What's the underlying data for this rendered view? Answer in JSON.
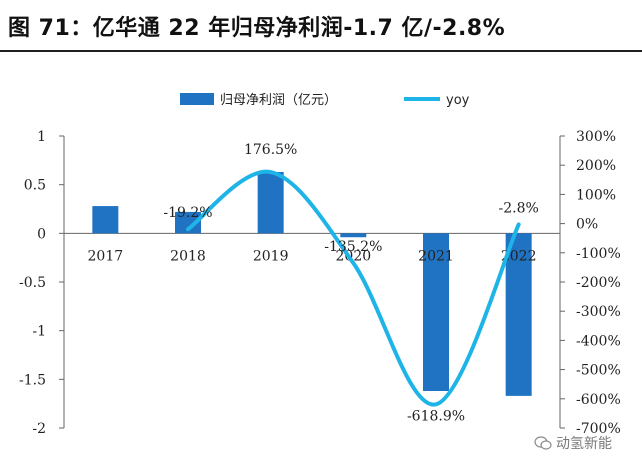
{
  "header": {
    "title": "图 71：亿华通 22 年归母净利润-1.7 亿/-2.8%"
  },
  "watermark": {
    "text": "动氢新能",
    "icon": "wechat-icon"
  },
  "colors": {
    "bar": "#1f73c2",
    "line": "#1fb4e8",
    "axis": "#666666",
    "text": "#222222"
  },
  "chart_data": {
    "type": "bar",
    "categories": [
      "2017",
      "2018",
      "2019",
      "2020",
      "2021",
      "2022"
    ],
    "series": [
      {
        "name": "归母净利润（亿元）",
        "type": "bar",
        "axis": "left",
        "values": [
          0.28,
          0.22,
          0.63,
          -0.04,
          -1.62,
          -1.67
        ]
      },
      {
        "name": "yoy",
        "type": "line",
        "axis": "right",
        "values": [
          null,
          -19.2,
          176.5,
          -135.2,
          -618.9,
          -2.8
        ],
        "labels": [
          "",
          "-19.2%",
          "176.5%",
          "-135.2%",
          "-618.9%",
          "-2.8%"
        ]
      }
    ],
    "left_axis": {
      "ylim": [
        -2,
        1
      ],
      "ticks": [
        "1",
        "0.5",
        "0",
        "-0.5",
        "-1",
        "-1.5",
        "-2"
      ]
    },
    "right_axis": {
      "ylim": [
        -700,
        300
      ],
      "ticks": [
        "300%",
        "200%",
        "100%",
        "0%",
        "-100%",
        "-200%",
        "-300%",
        "-400%",
        "-500%",
        "-600%",
        "-700%"
      ]
    },
    "legend_position": "top-center",
    "grid": false
  }
}
